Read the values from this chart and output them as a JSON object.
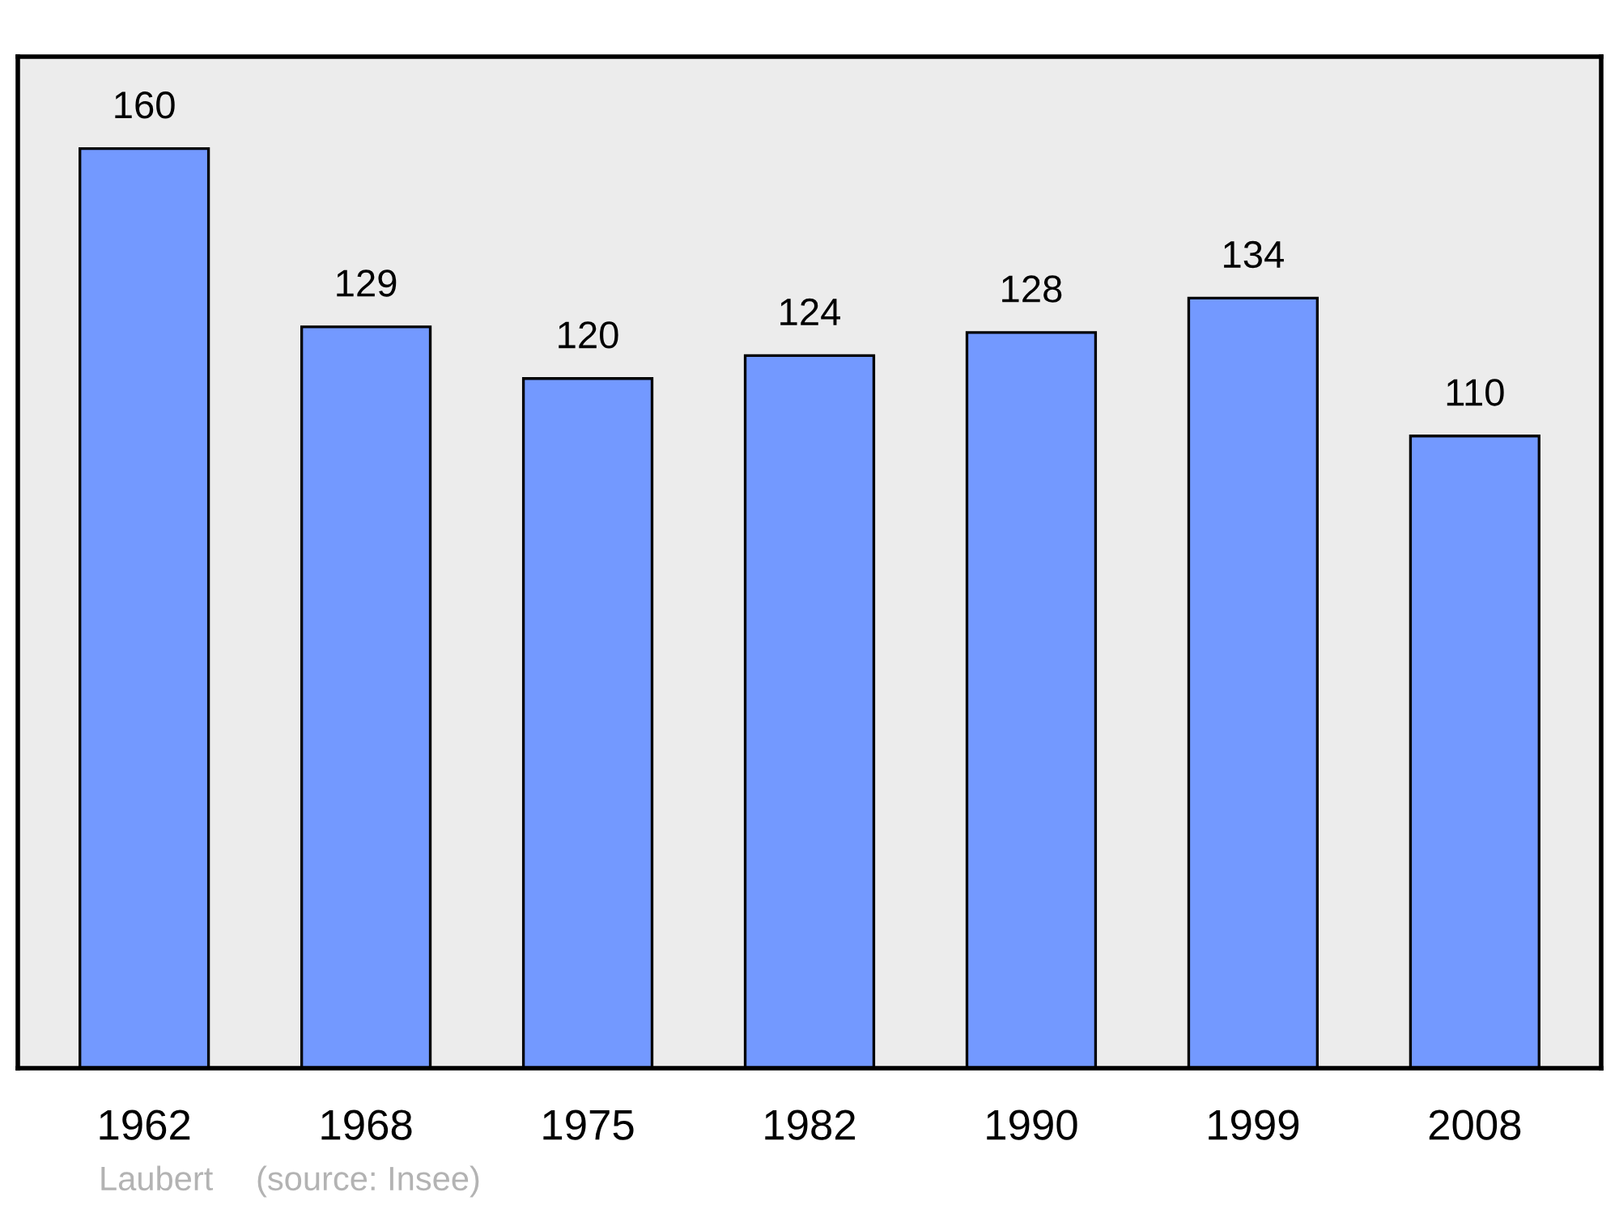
{
  "chart_data": {
    "type": "bar",
    "categories": [
      "1962",
      "1968",
      "1975",
      "1982",
      "1990",
      "1999",
      "2008"
    ],
    "values": [
      160,
      129,
      120,
      124,
      128,
      134,
      110
    ],
    "color": "#7399ff",
    "data_labels": true,
    "grid": false,
    "tick_labels": "x",
    "annotations": [
      "Laubert",
      "(source: Insee)"
    ]
  }
}
